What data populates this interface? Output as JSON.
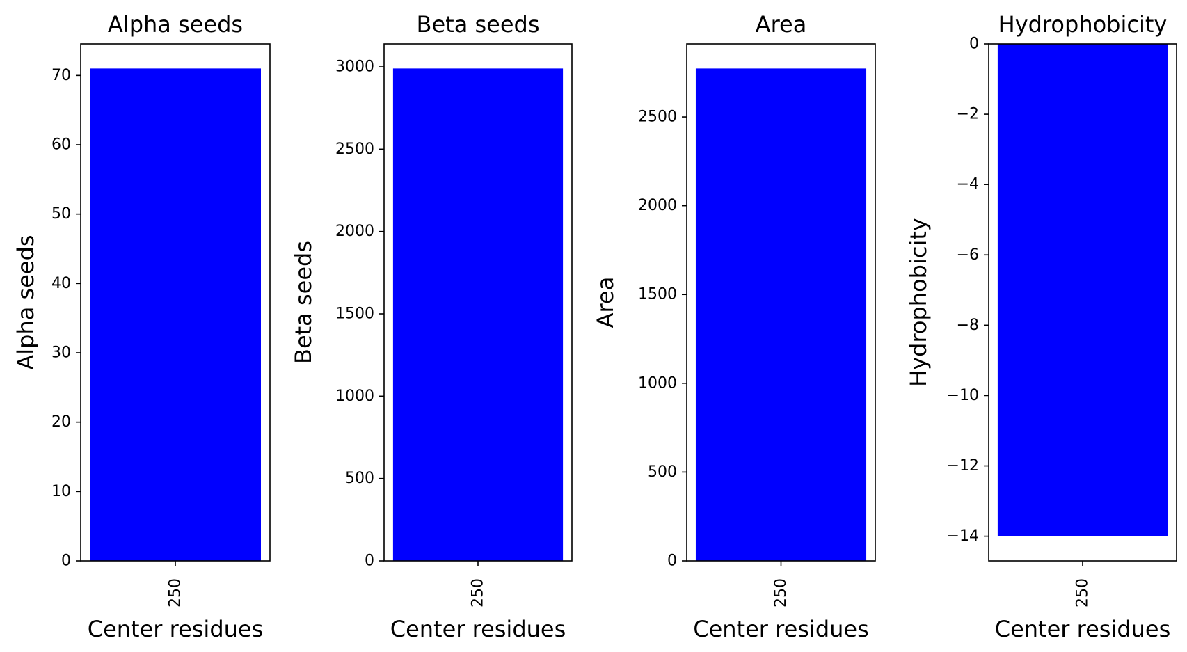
{
  "chart_data": [
    {
      "type": "bar",
      "title": "Alpha seeds",
      "xlabel": "Center residues",
      "ylabel": "Alpha seeds",
      "categories": [
        "250"
      ],
      "values": [
        71
      ],
      "ylim": [
        0,
        74.55
      ],
      "yticks": [
        0,
        10,
        20,
        30,
        40,
        50,
        60,
        70
      ],
      "bar_color": "#0000ff"
    },
    {
      "type": "bar",
      "title": "Beta seeds",
      "xlabel": "Center residues",
      "ylabel": "Beta seeds",
      "categories": [
        "250"
      ],
      "values": [
        2990
      ],
      "ylim": [
        0,
        3139.5
      ],
      "yticks": [
        0,
        500,
        1000,
        1500,
        2000,
        2500,
        3000
      ],
      "bar_color": "#0000ff"
    },
    {
      "type": "bar",
      "title": "Area",
      "xlabel": "Center residues",
      "ylabel": "Area",
      "categories": [
        "250"
      ],
      "values": [
        2773
      ],
      "ylim": [
        0,
        2911.7
      ],
      "yticks": [
        0,
        500,
        1000,
        1500,
        2000,
        2500
      ],
      "bar_color": "#0000ff"
    },
    {
      "type": "bar",
      "title": "Hydrophobicity",
      "xlabel": "Center residues",
      "ylabel": "Hydrophobicity",
      "categories": [
        "250"
      ],
      "values": [
        -14
      ],
      "ylim": [
        -14.7,
        0
      ],
      "yticks": [
        -14,
        -12,
        -10,
        -8,
        -6,
        -4,
        -2,
        0
      ],
      "bar_color": "#0000ff"
    }
  ]
}
